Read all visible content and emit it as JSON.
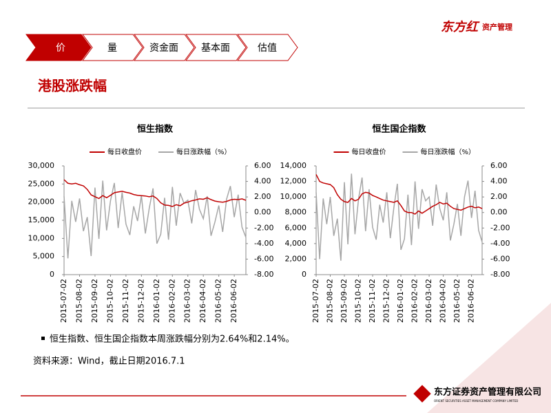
{
  "nav": {
    "tabs": [
      "价",
      "量",
      "资金面",
      "基本面",
      "估值"
    ]
  },
  "header": {
    "title": "港股涨跌幅",
    "logo": "东方红",
    "logo_sub": "资产管理"
  },
  "note": "恒生指数、恒生国企指数本周涨跌幅分别为2.64%和2.14%。",
  "source": "资料来源：Wind，截止日期2016.7.1",
  "footer": {
    "company": "东方证券资产管理有限公司",
    "company_en": "ORIENT SECURITIES ASSET MANAGEMENT COMPANY LIMITED"
  },
  "chart_data": [
    {
      "type": "line",
      "title": "恒生指数",
      "categories": [
        "2015-07-02",
        null,
        null,
        null,
        "2015-08-02",
        null,
        null,
        null,
        "2015-09-02",
        null,
        null,
        null,
        "2015-10-02",
        null,
        null,
        null,
        "2015-11-02",
        null,
        null,
        null,
        "2015-12-02",
        null,
        null,
        null,
        "2016-01-02",
        null,
        null,
        null,
        "2016-02-02",
        null,
        null,
        null,
        "2016-03-02",
        null,
        null,
        null,
        "2016-04-02",
        null,
        null,
        null,
        "2016-05-02",
        null,
        null,
        null,
        "2016-06-02",
        null,
        null,
        null
      ],
      "series": [
        {
          "name": "每日收盘价",
          "color": "#c00000",
          "values": [
            26200,
            25200,
            25000,
            25200,
            24800,
            24500,
            23500,
            22000,
            21500,
            21000,
            21800,
            21200,
            21900,
            22600,
            22800,
            23000,
            22700,
            22500,
            22100,
            21900,
            21800,
            21700,
            21500,
            21700,
            21000,
            19800,
            19200,
            19100,
            18800,
            19300,
            19000,
            19700,
            20000,
            20400,
            20600,
            20900,
            20800,
            21200,
            20700,
            20300,
            20100,
            20000,
            20200,
            20600,
            20800,
            20700,
            20900,
            20500
          ]
        },
        {
          "name": "每日涨跌幅（%）",
          "color": "#a6a6a6",
          "axis": "y2",
          "values": [
            2.1,
            -5.9,
            1.5,
            -1.2,
            1.8,
            -2.4,
            -0.6,
            -5.6,
            3.2,
            -3.4,
            4.1,
            -2.3,
            1.5,
            3.8,
            -2.0,
            2.6,
            -1.5,
            -2.9,
            0.8,
            -1.1,
            2.2,
            -2.7,
            0.5,
            3.1,
            -4.0,
            -2.8,
            1.9,
            -3.5,
            3.3,
            -1.7,
            2.5,
            1.2,
            1.6,
            -1.4,
            2.9,
            0.4,
            -0.8,
            2.1,
            -3.0,
            -1.2,
            0.9,
            -2.5,
            1.7,
            3.4,
            -0.6,
            2.3,
            -1.9,
            -3.2
          ]
        }
      ],
      "ylim": [
        0,
        30000
      ],
      "yticks": [
        0,
        {
          "value": 5000,
          "label": "5,000"
        },
        {
          "value": 10000,
          "label": "10,000"
        },
        {
          "value": 15000,
          "label": "15,000"
        },
        {
          "value": 20000,
          "label": "20,000"
        },
        {
          "value": 25000,
          "label": "25,000"
        },
        {
          "value": 30000,
          "label": "30,000"
        }
      ],
      "y2lim": [
        -8,
        6
      ],
      "y2ticks": [
        {
          "value": -8,
          "label": "-8.00"
        },
        {
          "value": -6,
          "label": "-6.00"
        },
        {
          "value": -4,
          "label": "-4.00"
        },
        {
          "value": -2,
          "label": "-2.00"
        },
        {
          "value": 0,
          "label": "0.00"
        },
        {
          "value": 2,
          "label": "2.00"
        },
        {
          "value": 4,
          "label": "4.00"
        },
        {
          "value": 6,
          "label": "6.00"
        }
      ]
    },
    {
      "type": "line",
      "title": "恒生国企指数",
      "categories": [
        "2015-07-02",
        null,
        null,
        null,
        "2015-08-02",
        null,
        null,
        null,
        "2015-09-02",
        null,
        null,
        null,
        "2015-10-02",
        null,
        null,
        null,
        "2015-11-02",
        null,
        null,
        null,
        "2015-12-02",
        null,
        null,
        null,
        "2016-01-02",
        null,
        null,
        null,
        "2016-02-02",
        null,
        null,
        null,
        "2016-03-02",
        null,
        null,
        null,
        "2016-04-02",
        null,
        null,
        null,
        "2016-05-02",
        null,
        null,
        null,
        "2016-06-02",
        null,
        null,
        null
      ],
      "series": [
        {
          "name": "每日收盘价",
          "color": "#c00000",
          "values": [
            12900,
            12000,
            11800,
            11700,
            11600,
            11200,
            10300,
            9700,
            9400,
            9300,
            9800,
            9500,
            9700,
            10400,
            10600,
            10500,
            10200,
            10000,
            9800,
            9600,
            9500,
            9400,
            9300,
            9500,
            8900,
            8200,
            8000,
            8000,
            7800,
            8200,
            7900,
            8200,
            8500,
            8800,
            9000,
            9300,
            9100,
            9200,
            8800,
            8500,
            8400,
            8300,
            8500,
            8700,
            8800,
            8600,
            8700,
            8500
          ]
        },
        {
          "name": "每日涨跌幅（%）",
          "color": "#a6a6a6",
          "axis": "y2",
          "values": [
            2.6,
            -6.0,
            1.8,
            -1.5,
            2.0,
            -3.0,
            -0.8,
            -6.2,
            3.9,
            -4.1,
            5.0,
            -2.8,
            1.7,
            4.5,
            -2.4,
            3.0,
            -1.9,
            -3.5,
            1.0,
            -1.3,
            2.6,
            -3.3,
            0.6,
            3.7,
            -4.8,
            -3.4,
            2.3,
            -4.2,
            4.0,
            -2.1,
            3.0,
            1.5,
            2.0,
            -1.7,
            3.6,
            0.5,
            -1.0,
            2.6,
            -3.6,
            -1.5,
            1.1,
            -3.0,
            2.0,
            4.1,
            -0.7,
            2.8,
            -2.3,
            -3.8
          ]
        }
      ],
      "ylim": [
        0,
        14000
      ],
      "yticks": [
        0,
        {
          "value": 2000,
          "label": "2,000"
        },
        {
          "value": 4000,
          "label": "4,000"
        },
        {
          "value": 6000,
          "label": "6,000"
        },
        {
          "value": 8000,
          "label": "8,000"
        },
        {
          "value": 10000,
          "label": "10,000"
        },
        {
          "value": 12000,
          "label": "12,000"
        },
        {
          "value": 14000,
          "label": "14,000"
        }
      ],
      "y2lim": [
        -8,
        6
      ],
      "y2ticks": [
        {
          "value": -8,
          "label": "-8.00"
        },
        {
          "value": -6,
          "label": "-6.00"
        },
        {
          "value": -4,
          "label": "-4.00"
        },
        {
          "value": -2,
          "label": "-2.00"
        },
        {
          "value": 0,
          "label": "0.00"
        },
        {
          "value": 2,
          "label": "2.00"
        },
        {
          "value": 4,
          "label": "4.00"
        },
        {
          "value": 6,
          "label": "6.00"
        }
      ]
    }
  ]
}
